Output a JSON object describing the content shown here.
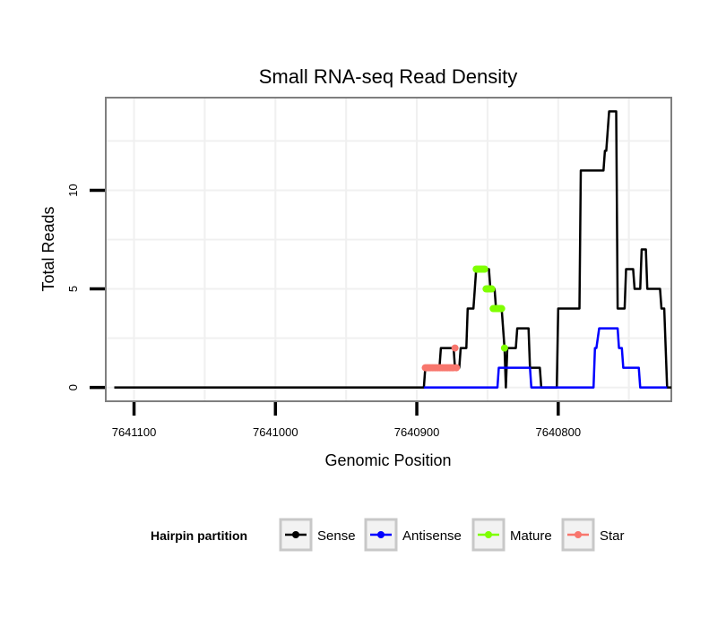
{
  "chart_data": {
    "type": "line",
    "title": "Small RNA-seq Read Density",
    "xlabel": "Genomic Position",
    "ylabel": "Total Reads",
    "x_reversed": true,
    "xlim": [
      7641120,
      7640720
    ],
    "ylim": [
      -0.7,
      14.7
    ],
    "x_ticks": [
      7641100,
      7641000,
      7640900,
      7640800
    ],
    "x_tick_labels": [
      "7641100",
      "7641000",
      "7640900",
      "7640800"
    ],
    "y_ticks": [
      0,
      5,
      10
    ],
    "y_tick_labels": [
      "0",
      "5",
      "10"
    ],
    "grid": true,
    "legend": {
      "title": "Hairpin partition",
      "placement": "bottom",
      "entries": [
        "Sense",
        "Antisense",
        "Mature",
        "Star"
      ]
    },
    "series": [
      {
        "name": "Sense",
        "color": "#000000",
        "style": "line",
        "x": [
          7641114,
          7640895,
          7640894,
          7640884,
          7640883,
          7640874,
          7640873,
          7640870,
          7640869,
          7640865,
          7640864,
          7640860,
          7640858,
          7640857,
          7640856,
          7640849,
          7640848,
          7640845,
          7640844,
          7640840,
          7640838,
          7640837,
          7640836,
          7640834,
          7640832,
          7640830,
          7640829,
          7640821,
          7640820,
          7640813,
          7640812,
          7640801,
          7640800,
          7640785,
          7640784,
          7640781,
          7640779,
          7640768,
          7640767,
          7640766,
          7640764,
          7640759,
          7640758,
          7640753,
          7640752,
          7640747,
          7640746,
          7640742,
          7640741,
          7640738,
          7640737,
          7640728,
          7640727,
          7640725,
          7640723,
          7640720
        ],
        "y": [
          0,
          0,
          1,
          1,
          2,
          2,
          1,
          1,
          2,
          2,
          4,
          4,
          6,
          6,
          6,
          6,
          5,
          5,
          4,
          4,
          2,
          0,
          2,
          2,
          2,
          2,
          3,
          3,
          1,
          1,
          0,
          0,
          4,
          4,
          11,
          11,
          11,
          11,
          12,
          12,
          14,
          14,
          4,
          4,
          6,
          6,
          5,
          5,
          7,
          7,
          5,
          5,
          4,
          4,
          0,
          0
        ]
      },
      {
        "name": "Antisense",
        "color": "#0000ff",
        "style": "line",
        "x": [
          7640895,
          7640843,
          7640842,
          7640832,
          7640831,
          7640820,
          7640819,
          7640785,
          7640784,
          7640775,
          7640774,
          7640773,
          7640771,
          7640766,
          7640765,
          7640758,
          7640757,
          7640755,
          7640754,
          7640743,
          7640742,
          7640723
        ],
        "y": [
          0,
          0,
          1,
          1,
          1,
          1,
          0,
          0,
          0,
          0,
          2,
          2,
          3,
          3,
          3,
          3,
          2,
          2,
          1,
          1,
          0,
          0
        ]
      },
      {
        "name": "Mature",
        "color": "#7fff00",
        "style": "points",
        "x": [
          7640858,
          7640857,
          7640856,
          7640855,
          7640854,
          7640853,
          7640852,
          7640851,
          7640850,
          7640849,
          7640848,
          7640847,
          7640846,
          7640845,
          7640844,
          7640843,
          7640842,
          7640841,
          7640840,
          7640838
        ],
        "y": [
          6,
          6,
          6,
          6,
          6,
          6,
          6,
          5,
          5,
          5,
          5,
          5,
          4,
          4,
          4,
          4,
          4,
          4,
          4,
          2
        ]
      },
      {
        "name": "Star",
        "color": "#f8766d",
        "style": "points",
        "x": [
          7640894,
          7640893,
          7640892,
          7640891,
          7640890,
          7640889,
          7640888,
          7640887,
          7640886,
          7640885,
          7640884,
          7640883,
          7640882,
          7640881,
          7640880,
          7640879,
          7640878,
          7640877,
          7640876,
          7640875,
          7640874,
          7640873,
          7640872
        ],
        "y": [
          1,
          1,
          1,
          1,
          1,
          1,
          1,
          1,
          1,
          1,
          1,
          1,
          1,
          1,
          1,
          1,
          1,
          1,
          1,
          1,
          1,
          2,
          1
        ]
      }
    ]
  }
}
